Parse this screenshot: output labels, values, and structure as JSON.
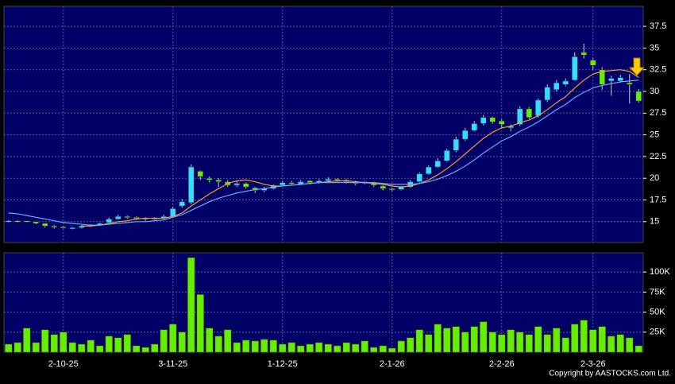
{
  "chart_data": [
    {
      "type": "candlestick",
      "up_color": "#33ddff",
      "down_color": "#66ee00",
      "background": "#000066",
      "grid": true,
      "ylim": [
        12.6,
        39.8
      ],
      "yticks": [
        15,
        17.5,
        20,
        22.5,
        25,
        27.5,
        30,
        32.5,
        35,
        37.5
      ],
      "open": [
        15.0,
        15.1,
        15.1,
        15.0,
        14.8,
        14.5,
        14.4,
        14.2,
        14.3,
        14.5,
        14.6,
        14.9,
        15.3,
        15.6,
        15.5,
        15.4,
        15.3,
        15.4,
        15.6,
        16.8,
        17.2,
        20.8,
        20.0,
        19.8,
        19.6,
        19.2,
        19.4,
        18.9,
        18.6,
        18.8,
        19.2,
        19.5,
        19.3,
        19.7,
        19.5,
        19.7,
        19.9,
        19.8,
        19.6,
        19.4,
        19.5,
        19.1,
        18.8,
        18.7,
        19.0,
        19.6,
        20.5,
        21.3,
        22.0,
        23.2,
        24.5,
        25.5,
        26.3,
        27.0,
        26.6,
        25.8,
        26.2,
        28.0,
        27.2,
        29.0,
        30.2,
        30.8,
        31.3,
        34.5,
        33.6,
        32.5,
        31.2,
        31.2,
        31.0,
        30.0
      ],
      "high": [
        15.2,
        15.2,
        15.1,
        15.0,
        14.8,
        14.6,
        14.5,
        14.4,
        14.6,
        14.7,
        14.9,
        15.5,
        15.8,
        15.7,
        15.6,
        15.5,
        15.5,
        15.8,
        16.7,
        17.6,
        21.6,
        20.9,
        20.2,
        20.0,
        19.8,
        19.7,
        19.5,
        19.0,
        19.0,
        19.3,
        19.7,
        19.7,
        19.8,
        19.8,
        19.9,
        20.1,
        20.0,
        19.9,
        19.7,
        19.7,
        19.6,
        19.2,
        18.9,
        19.1,
        19.8,
        20.7,
        21.5,
        22.3,
        23.4,
        24.8,
        25.8,
        26.6,
        27.3,
        27.1,
        26.8,
        26.2,
        28.3,
        28.2,
        29.2,
        30.8,
        31.3,
        31.5,
        34.5,
        35.5,
        33.8,
        32.8,
        31.8,
        31.9,
        32.0,
        30.3
      ],
      "low": [
        14.9,
        14.9,
        14.9,
        14.7,
        14.3,
        14.2,
        14.2,
        14.1,
        14.2,
        14.4,
        14.5,
        14.8,
        15.2,
        15.3,
        15.2,
        15.1,
        15.2,
        15.3,
        15.5,
        16.6,
        17.0,
        19.8,
        19.5,
        19.0,
        19.0,
        19.0,
        18.8,
        18.3,
        18.4,
        18.7,
        19.1,
        19.2,
        19.2,
        19.3,
        19.4,
        19.6,
        19.6,
        19.4,
        19.2,
        19.3,
        19.0,
        18.6,
        18.5,
        18.6,
        18.9,
        19.5,
        20.4,
        21.2,
        21.9,
        23.0,
        24.3,
        25.4,
        26.1,
        26.3,
        25.8,
        25.4,
        26.0,
        26.8,
        27.0,
        28.8,
        30.0,
        30.6,
        31.2,
        33.8,
        32.5,
        30.2,
        29.5,
        31.0,
        28.6,
        28.7
      ],
      "close": [
        15.1,
        15.0,
        15.0,
        14.8,
        14.5,
        14.4,
        14.3,
        14.3,
        14.5,
        14.6,
        14.8,
        15.3,
        15.6,
        15.5,
        15.4,
        15.3,
        15.4,
        15.6,
        16.5,
        17.3,
        21.3,
        20.2,
        19.8,
        19.6,
        19.2,
        19.4,
        19.0,
        18.6,
        18.8,
        19.2,
        19.5,
        19.4,
        19.6,
        19.5,
        19.7,
        19.9,
        19.8,
        19.6,
        19.4,
        19.6,
        19.2,
        18.8,
        18.7,
        19.0,
        19.6,
        20.5,
        21.3,
        22.0,
        23.2,
        24.5,
        25.5,
        26.3,
        27.0,
        26.5,
        26.2,
        26.0,
        28.0,
        27.0,
        29.0,
        30.5,
        31.0,
        31.2,
        34.0,
        34.2,
        33.0,
        30.8,
        31.5,
        31.6,
        30.8,
        28.9
      ],
      "lines": [
        {
          "color": "#ff9933",
          "values": [
            null,
            null,
            null,
            null,
            null,
            null,
            null,
            null,
            14.5,
            14.5,
            14.6,
            14.8,
            15.0,
            15.1,
            15.3,
            15.4,
            15.4,
            15.4,
            15.6,
            16.0,
            16.8,
            17.5,
            18.2,
            18.8,
            19.4,
            19.7,
            19.8,
            19.6,
            19.3,
            19.1,
            19.1,
            19.2,
            19.3,
            19.4,
            19.5,
            19.6,
            19.7,
            19.7,
            19.6,
            19.5,
            19.4,
            19.3,
            19.1,
            19.0,
            19.1,
            19.4,
            19.8,
            20.4,
            21.1,
            21.9,
            22.8,
            23.7,
            24.6,
            25.3,
            25.8,
            26.0,
            26.4,
            26.7,
            27.2,
            27.9,
            28.7,
            29.4,
            30.4,
            31.3,
            32.0,
            32.3,
            32.4,
            32.5,
            32.3,
            31.6
          ]
        },
        {
          "color": "#66aaff",
          "values": [
            16.0,
            15.9,
            15.7,
            15.5,
            15.3,
            15.1,
            14.9,
            14.8,
            14.7,
            14.6,
            14.6,
            14.7,
            14.8,
            14.9,
            15.0,
            15.0,
            15.1,
            15.2,
            15.5,
            15.8,
            16.3,
            16.8,
            17.3,
            17.7,
            18.0,
            18.3,
            18.5,
            18.7,
            18.8,
            19.0,
            19.1,
            19.2,
            19.3,
            19.4,
            19.5,
            19.5,
            19.5,
            19.5,
            19.5,
            19.5,
            19.5,
            19.4,
            19.3,
            19.3,
            19.3,
            19.4,
            19.6,
            19.9,
            20.3,
            20.8,
            21.4,
            22.1,
            22.9,
            23.6,
            24.3,
            24.8,
            25.4,
            25.9,
            26.5,
            27.2,
            27.9,
            28.5,
            29.3,
            29.9,
            30.4,
            30.7,
            30.9,
            31.1,
            31.2,
            31.3
          ]
        }
      ]
    },
    {
      "type": "bar",
      "color": "#66ee00",
      "background": "#000066",
      "grid": true,
      "ylim": [
        0,
        124000
      ],
      "yticks": [
        {
          "value": 25000,
          "label": "25K"
        },
        {
          "value": 50000,
          "label": "50K"
        },
        {
          "value": 75000,
          "label": "75K"
        },
        {
          "value": 100000,
          "label": "100K"
        }
      ],
      "categories": [
        null,
        null,
        null,
        null,
        null,
        null,
        "2-10-25",
        null,
        null,
        null,
        null,
        null,
        null,
        null,
        null,
        null,
        null,
        null,
        "3-11-25",
        null,
        null,
        null,
        null,
        null,
        null,
        null,
        null,
        null,
        null,
        null,
        "1-12-25",
        null,
        null,
        null,
        null,
        null,
        null,
        null,
        null,
        null,
        null,
        null,
        "2-1-26",
        null,
        null,
        null,
        null,
        null,
        null,
        null,
        null,
        null,
        null,
        null,
        "2-2-26",
        null,
        null,
        null,
        null,
        null,
        null,
        null,
        null,
        null,
        "2-3-26",
        null,
        null,
        null,
        null,
        null
      ],
      "values": [
        10000,
        12000,
        30000,
        12000,
        28000,
        22000,
        25000,
        12000,
        10000,
        15000,
        8000,
        20000,
        18000,
        22000,
        8000,
        6000,
        10000,
        28000,
        35000,
        25000,
        118000,
        72000,
        30000,
        20000,
        28000,
        12000,
        15000,
        14000,
        16000,
        15000,
        10000,
        12000,
        8000,
        10000,
        12000,
        10000,
        8000,
        12000,
        10000,
        14000,
        6000,
        8000,
        5000,
        14000,
        18000,
        28000,
        22000,
        35000,
        30000,
        32000,
        25000,
        32000,
        38000,
        25000,
        22000,
        28000,
        25000,
        22000,
        32000,
        22000,
        30000,
        18000,
        35000,
        40000,
        28000,
        32000,
        20000,
        22000,
        18000,
        8000
      ]
    }
  ],
  "copyright": "Copyright by AASTOCKS.com Ltd."
}
